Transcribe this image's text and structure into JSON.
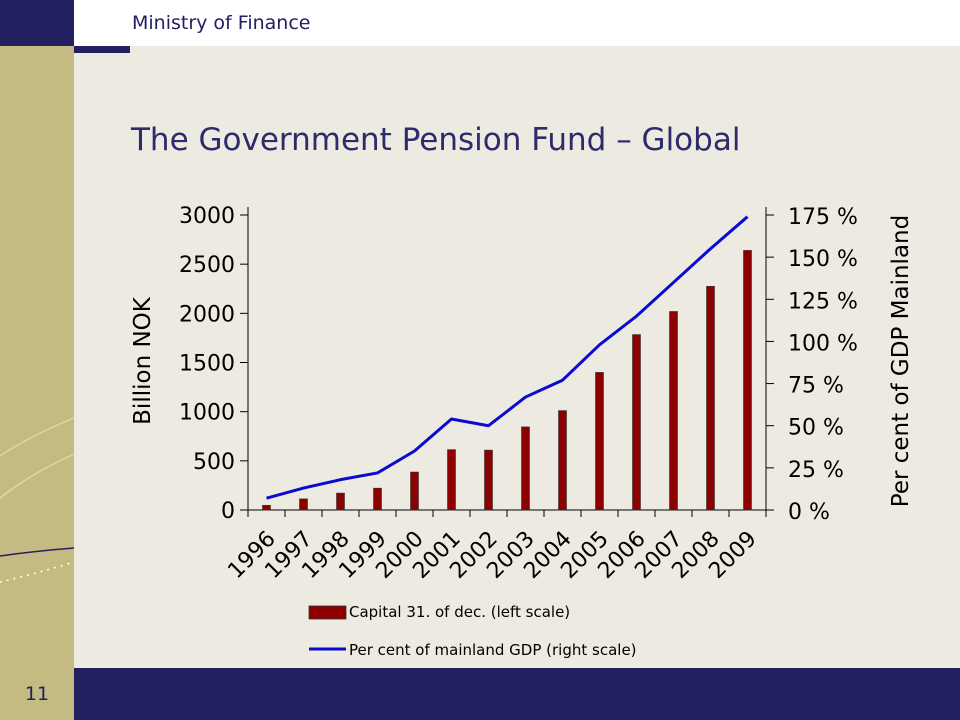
{
  "header": {
    "ministry": "Ministry of Finance"
  },
  "slide": {
    "title": "The Government Pension Fund – Global",
    "page_number": "11"
  },
  "colors": {
    "navy": "#232060",
    "sidebar": "#c3bb82",
    "background": "#edeae1",
    "bar": "#8b0000",
    "line": "#0a0ad0"
  },
  "chart_data": {
    "type": "bar",
    "categories": [
      "1996",
      "1997",
      "1998",
      "1999",
      "2000",
      "2001",
      "2002",
      "2003",
      "2004",
      "2005",
      "2006",
      "2007",
      "2008",
      "2009"
    ],
    "series": [
      {
        "name": "Capital 31. of dec. (left scale)",
        "type": "bar",
        "axis": "left",
        "values": [
          48,
          113,
          172,
          222,
          386,
          614,
          609,
          845,
          1011,
          1399,
          1784,
          2019,
          2275,
          2640
        ]
      },
      {
        "name": "Per cent of mainland GDP (right scale)",
        "type": "line",
        "axis": "right",
        "values": [
          7,
          13,
          18,
          22,
          35,
          54,
          50,
          67,
          77,
          98,
          115,
          135,
          155,
          174
        ]
      }
    ],
    "ylabel_left": "Billion NOK",
    "ylabel_right": "Per cent of GDP Mainland",
    "ylim_left": [
      0,
      3000
    ],
    "ylim_right": [
      0,
      175
    ],
    "yticks_left": [
      "0",
      "500",
      "1000",
      "1500",
      "2000",
      "2500",
      "3000"
    ],
    "yticks_right": [
      "0 %",
      "25 %",
      "50 %",
      "75 %",
      "100 %",
      "125 %",
      "150 %",
      "175 %"
    ],
    "grid": false,
    "legend_position": "bottom"
  }
}
